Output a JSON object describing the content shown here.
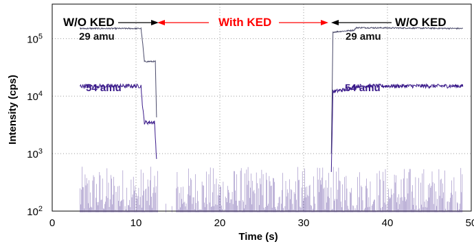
{
  "chart_data": {
    "type": "line",
    "xlabel": "Time (s)",
    "ylabel": "Intensity (cps)",
    "xlim": [
      0,
      50
    ],
    "ylim_log10": [
      2,
      5.6
    ],
    "y_scale": "log",
    "grid": true,
    "x_ticks": [
      "0",
      "10",
      "20",
      "30",
      "40",
      "50"
    ],
    "y_ticks": [
      {
        "exp": 2,
        "base": "10",
        "sup": "2"
      },
      {
        "exp": 3,
        "base": "10",
        "sup": "3"
      },
      {
        "exp": 4,
        "base": "10",
        "sup": "4"
      },
      {
        "exp": 5,
        "base": "10",
        "sup": "5"
      }
    ],
    "series": [
      {
        "name": "29 amu",
        "color": "#4a4a6a",
        "points": [
          [
            3.3,
            150000
          ],
          [
            10.6,
            150000
          ],
          [
            10.8,
            80000
          ],
          [
            11.0,
            40000
          ],
          [
            12.3,
            40000
          ],
          [
            12.5,
            2000
          ],
          [
            33.3,
            1000
          ],
          [
            33.5,
            130000
          ],
          [
            36,
            140000
          ],
          [
            36.3,
            155000
          ],
          [
            49,
            150000
          ]
        ]
      },
      {
        "name": "54 amu",
        "color": "#3a1a8a",
        "points": [
          [
            3.3,
            15000
          ],
          [
            10.6,
            15000
          ],
          [
            10.8,
            6000
          ],
          [
            11.0,
            3500
          ],
          [
            12.2,
            3500
          ],
          [
            12.5,
            600
          ],
          [
            33.3,
            500
          ],
          [
            33.5,
            12000
          ],
          [
            35,
            13000
          ],
          [
            36.5,
            15000
          ],
          [
            49,
            15000
          ]
        ]
      },
      {
        "name": "",
        "color": "#3a1a8a",
        "noise_range": [
          3.3,
          49
        ],
        "gap": [
          12.6,
          14.8
        ],
        "baseline": 100,
        "max": 600
      }
    ],
    "annotations": {
      "left_mode": "W/O KED",
      "middle_mode": "With KED",
      "right_mode": "W/O KED",
      "label_29_left": "29 amu",
      "label_54_left": "54 amu",
      "label_29_right": "29 amu",
      "label_54_right": "54 amu"
    },
    "colors": {
      "annotation_red": "#ff0000",
      "annotation_black": "#000000",
      "grid": "#9a9a9a"
    }
  }
}
